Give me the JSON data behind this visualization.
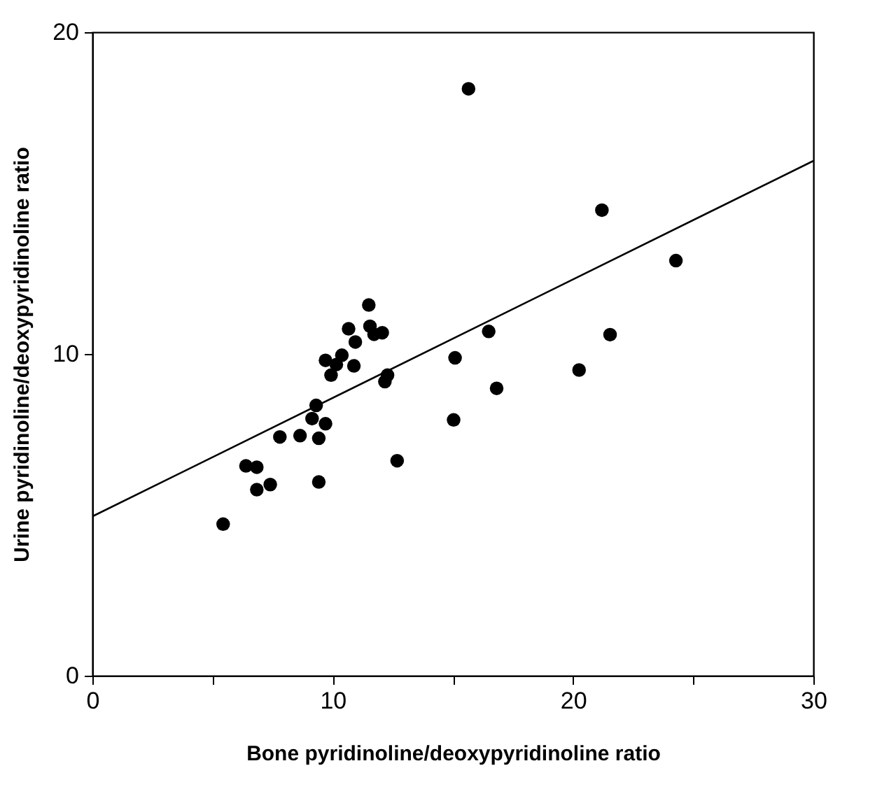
{
  "chart_data": {
    "type": "scatter",
    "xlabel": "Bone  pyridinoline/deoxypyridinoline  ratio",
    "ylabel": "Urine  pyridinoline/deoxypyridinoline  ratio",
    "xlim": [
      0,
      30
    ],
    "ylim": [
      0,
      20
    ],
    "xticks": [
      0,
      {
        "value": 5,
        "label": null
      },
      10,
      {
        "value": 15,
        "label": null
      },
      20,
      {
        "value": 25,
        "label": null
      },
      30
    ],
    "yticks": [
      0,
      10,
      20
    ],
    "grid": false,
    "marker": "circle",
    "series": [
      {
        "color": "#000000",
        "x": [
          5.44,
          6.39,
          6.84,
          6.84,
          7.4,
          7.8,
          8.64,
          9.14,
          9.31,
          9.42,
          9.42,
          9.7,
          9.7,
          9.93,
          10.15,
          10.38,
          10.66,
          10.88,
          10.94,
          11.5,
          11.55,
          11.72,
          12.06,
          12.17,
          12.28,
          12.68,
          15.03,
          15.09,
          15.65,
          16.49,
          16.82,
          20.25,
          21.2,
          21.54,
          24.28
        ],
        "values": [
          4.71,
          6.52,
          6.48,
          5.78,
          5.94,
          7.42,
          7.46,
          7.99,
          8.4,
          7.38,
          6.02,
          7.83,
          9.8,
          9.34,
          9.67,
          9.96,
          10.78,
          9.63,
          10.37,
          11.52,
          10.86,
          10.61,
          10.66,
          9.14,
          9.34,
          6.68,
          7.95,
          9.88,
          18.24,
          10.7,
          8.93,
          9.5,
          14.47,
          10.6,
          12.9
        ]
      },
      {
        "type": "line",
        "color": "#000000",
        "marker": "none",
        "line_style": "solid",
        "x": [
          0,
          30
        ],
        "values": [
          4.95,
          16
        ]
      }
    ]
  }
}
